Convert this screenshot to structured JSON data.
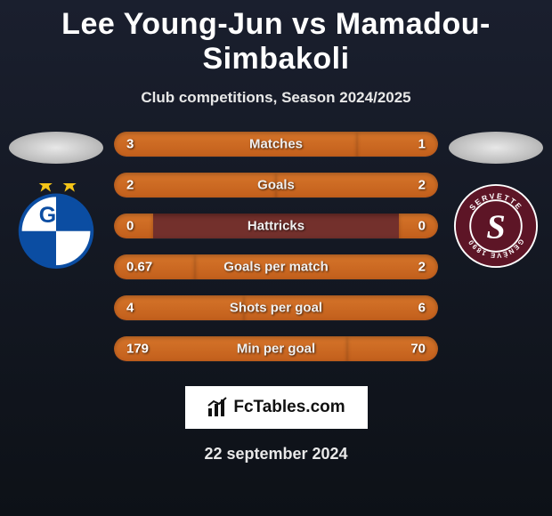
{
  "header": {
    "title": "Lee Young-Jun vs Mamadou-Simbakoli",
    "subtitle": "Club competitions, Season 2024/2025"
  },
  "stats": [
    {
      "label": "Matches",
      "left_value": "3",
      "right_value": "1",
      "left_pct": 75,
      "right_pct": 25
    },
    {
      "label": "Goals",
      "left_value": "2",
      "right_value": "2",
      "left_pct": 50,
      "right_pct": 50
    },
    {
      "label": "Hattricks",
      "left_value": "0",
      "right_value": "0",
      "left_pct": 12,
      "right_pct": 12
    },
    {
      "label": "Goals per match",
      "left_value": "0.67",
      "right_value": "2",
      "left_pct": 25.1,
      "right_pct": 74.9
    },
    {
      "label": "Shots per goal",
      "left_value": "4",
      "right_value": "6",
      "left_pct": 40,
      "right_pct": 60
    },
    {
      "label": "Min per goal",
      "left_value": "179",
      "right_value": "70",
      "left_pct": 71.9,
      "right_pct": 28.1
    }
  ],
  "left_club": {
    "name": "Grasshopper Zürich",
    "badge_bg": "#ffffff",
    "ring_color": "#0b4da2",
    "accent_color": "#f5c518"
  },
  "right_club": {
    "name": "Servette FC Genève 1890",
    "badge_bg": "#7a1b2f",
    "ring_color": "#ffffff",
    "founded": "1890"
  },
  "brand": {
    "text": "FcTables.com"
  },
  "footer": {
    "date": "22 september 2024"
  },
  "colors": {
    "bg_top": "#1a1f2e",
    "bg_bottom": "#0d1117",
    "bar_track": "#73302c",
    "bar_fill_top": "#d6752a",
    "bar_fill_bottom": "#c25f1c",
    "text": "#ffffff"
  }
}
